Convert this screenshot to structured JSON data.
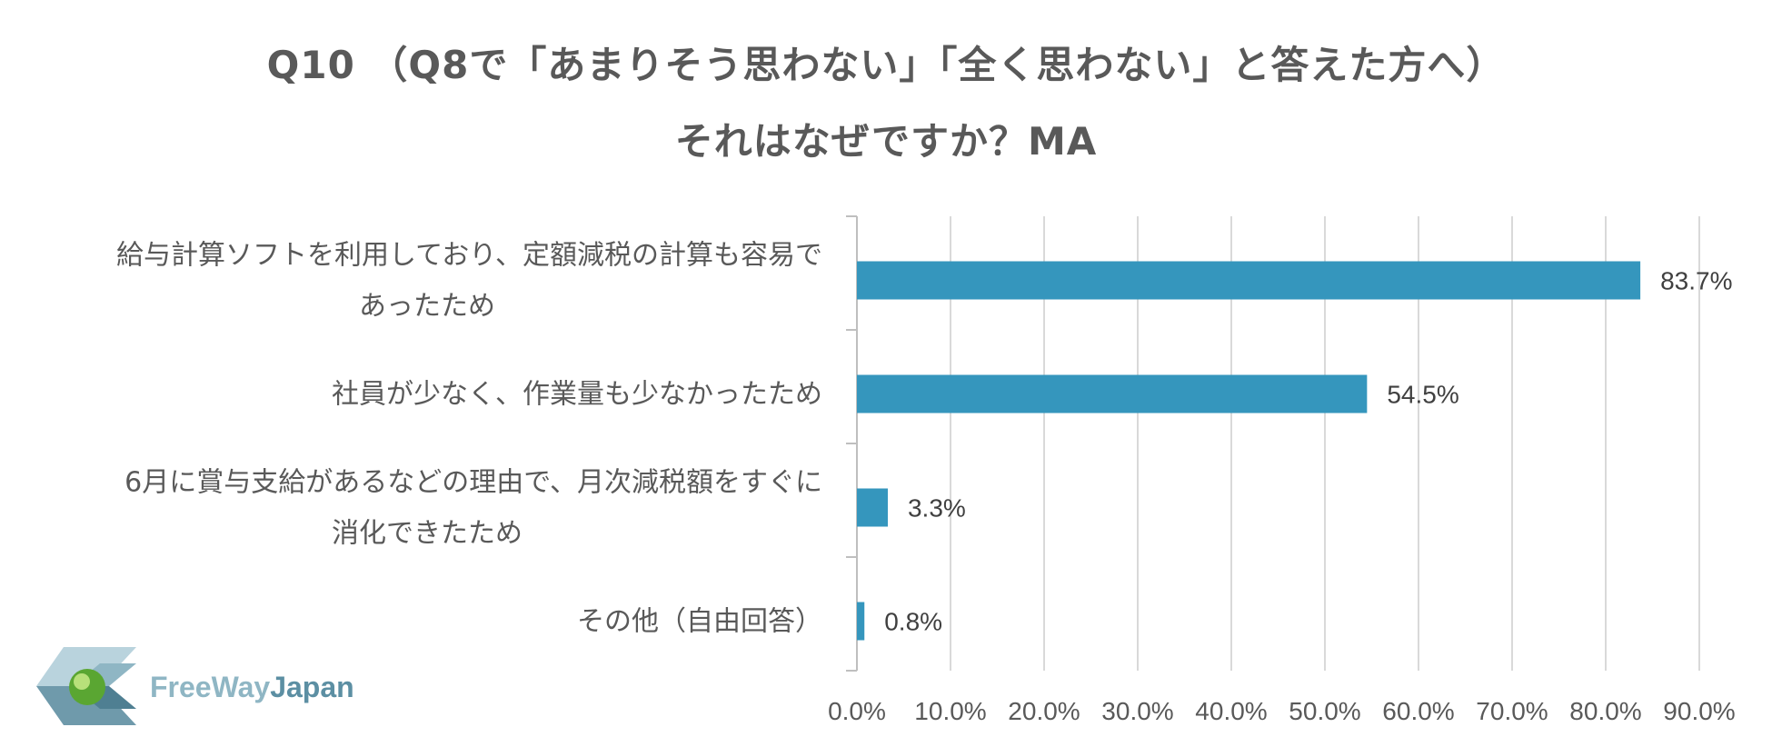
{
  "chart_data": {
    "type": "bar",
    "orientation": "horizontal",
    "title_line1": "Q10 （Q8で「あまりそう思わない」「全く思わない」と答えた方へ）",
    "title_line2": "それはなぜですか？MA",
    "categories": [
      [
        "給与計算ソフトを利用しており、定額減税の計算も容易で",
        "あったため"
      ],
      [
        "社員が少なく、作業量も少なかったため"
      ],
      [
        "6月に賞与支給があるなどの理由で、月次減税額をすぐに",
        "消化できたため"
      ],
      [
        "その他（自由回答）"
      ]
    ],
    "values": [
      83.7,
      54.5,
      3.3,
      0.8
    ],
    "value_labels": [
      "83.7%",
      "54.5%",
      "3.3%",
      "0.8%"
    ],
    "xlim": [
      0,
      90
    ],
    "xticks": [
      "0.0%",
      "10.0%",
      "20.0%",
      "30.0%",
      "40.0%",
      "50.0%",
      "60.0%",
      "70.0%",
      "80.0%",
      "90.0%"
    ],
    "bar_color": "#3596bd",
    "grid": true
  },
  "logo": {
    "text_a": "FreeWay",
    "text_b": "Japan"
  }
}
